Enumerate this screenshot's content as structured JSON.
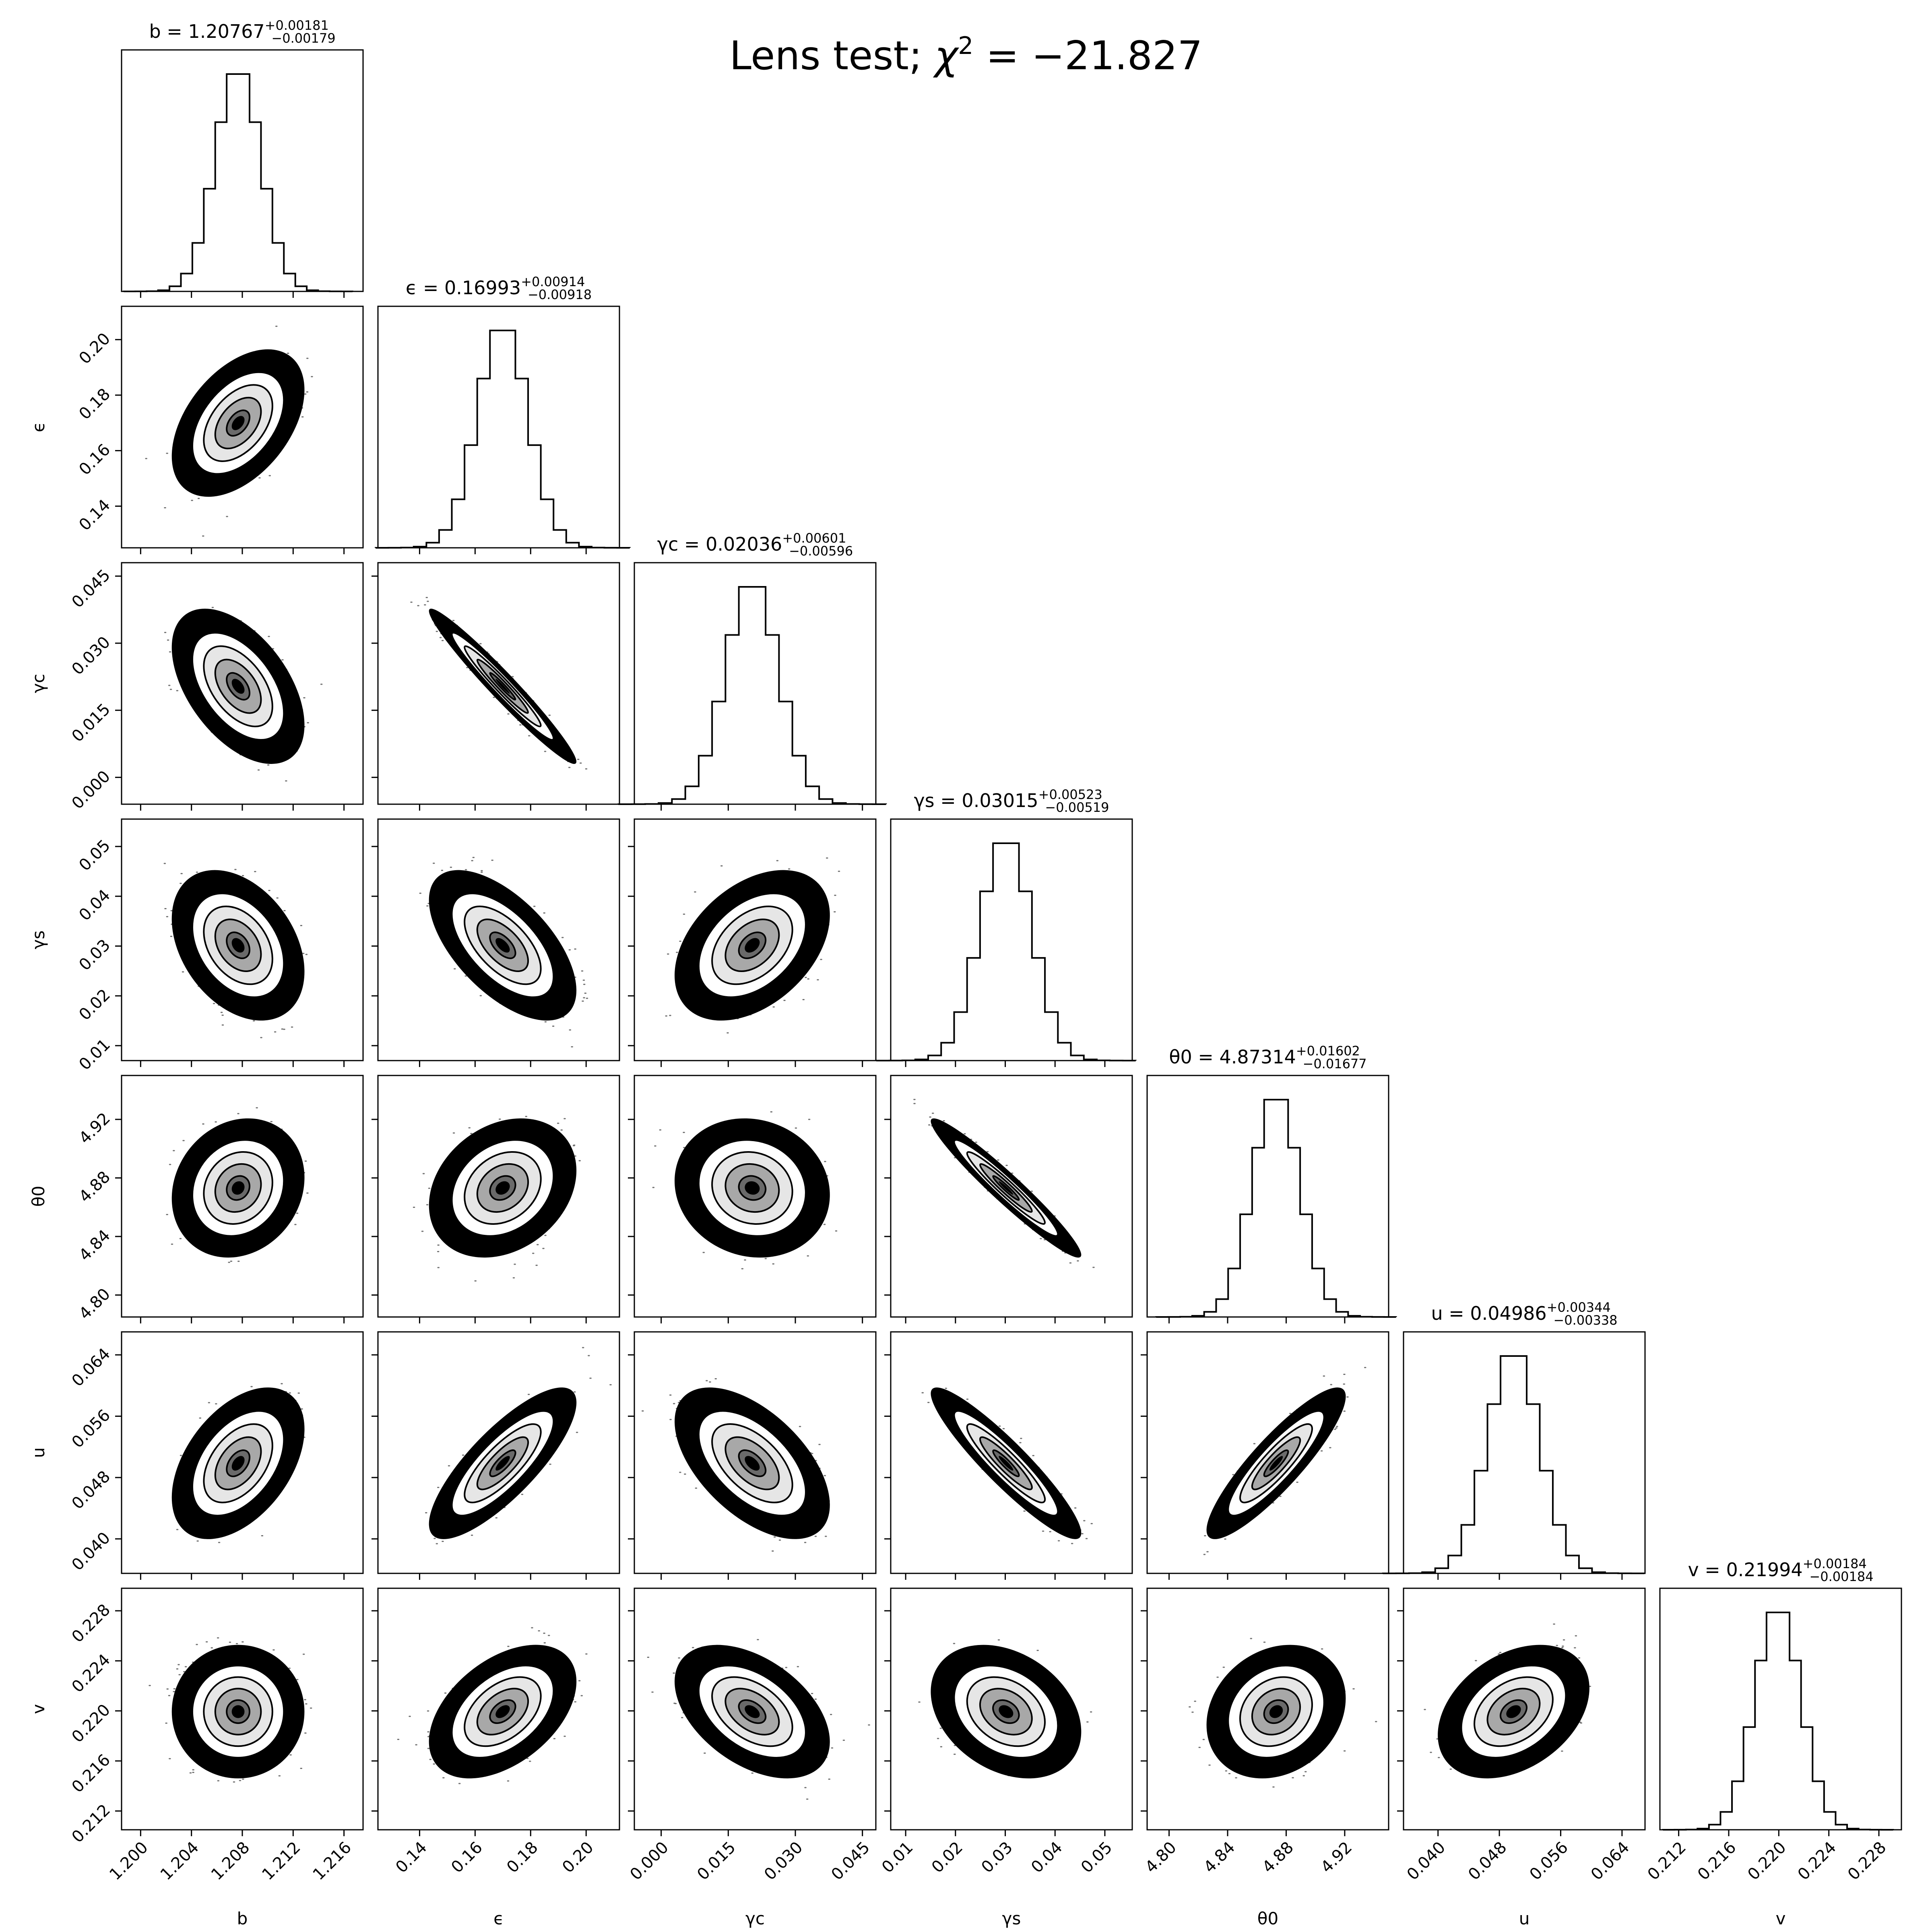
{
  "figure": {
    "title": "Lens test; χ² = −21.827",
    "title_text": "Lens test; ",
    "title_chi": "χ",
    "title_sup": "2",
    "title_rest": " = −21.827"
  },
  "chart_data": {
    "type": "corner",
    "colors": {
      "ink": "#000000",
      "background": "#ffffff"
    },
    "parameters": [
      {
        "label": "b",
        "median": 1.20767,
        "plus": 0.00181,
        "minus": 0.00179,
        "title": "b = 1.20767",
        "title_plus": "+0.00181",
        "title_minus": "−0.00179",
        "range": [
          1.1985,
          1.2175
        ],
        "ticks": [
          1.2,
          1.204,
          1.208,
          1.212,
          1.216
        ],
        "tick_labels": [
          "1.200",
          "1.204",
          "1.208",
          "1.212",
          "1.216"
        ]
      },
      {
        "label": "ϵ",
        "median": 0.16993,
        "plus": 0.00914,
        "minus": 0.00918,
        "title": "ϵ = 0.16993",
        "title_plus": "+0.00914",
        "title_minus": "−0.00918",
        "range": [
          0.125,
          0.212
        ],
        "ticks": [
          0.14,
          0.16,
          0.18,
          0.2
        ],
        "tick_labels": [
          "0.14",
          "0.16",
          "0.18",
          "0.20"
        ]
      },
      {
        "label": "γc",
        "median": 0.02036,
        "plus": 0.00601,
        "minus": 0.00596,
        "title": "γc = 0.02036",
        "title_plus": "+0.00601",
        "title_minus": "−0.00596",
        "range": [
          -0.006,
          0.048
        ],
        "ticks": [
          0.0,
          0.015,
          0.03,
          0.045
        ],
        "tick_labels": [
          "0.000",
          "0.015",
          "0.030",
          "0.045"
        ]
      },
      {
        "label": "γs",
        "median": 0.03015,
        "plus": 0.00523,
        "minus": 0.00519,
        "title": "γs = 0.03015",
        "title_plus": "+0.00523",
        "title_minus": "−0.00519",
        "range": [
          0.007,
          0.0555
        ],
        "ticks": [
          0.01,
          0.02,
          0.03,
          0.04,
          0.05
        ],
        "tick_labels": [
          "0.01",
          "0.02",
          "0.03",
          "0.04",
          "0.05"
        ]
      },
      {
        "label": "θ0",
        "median": 4.87314,
        "plus": 0.01602,
        "minus": 0.01677,
        "title": "θ0 = 4.87314",
        "title_plus": "+0.01602",
        "title_minus": "−0.01677",
        "range": [
          4.785,
          4.95
        ],
        "ticks": [
          4.8,
          4.84,
          4.88,
          4.92
        ],
        "tick_labels": [
          "4.80",
          "4.84",
          "4.88",
          "4.92"
        ]
      },
      {
        "label": "u",
        "median": 0.04986,
        "plus": 0.00344,
        "minus": 0.00338,
        "title": "u = 0.04986",
        "title_plus": "+0.00344",
        "title_minus": "−0.00338",
        "range": [
          0.0355,
          0.067
        ],
        "ticks": [
          0.04,
          0.048,
          0.056,
          0.064
        ],
        "tick_labels": [
          "0.040",
          "0.048",
          "0.056",
          "0.064"
        ]
      },
      {
        "label": "v",
        "median": 0.21994,
        "plus": 0.00184,
        "minus": 0.00184,
        "title": "v = 0.21994",
        "title_plus": "+0.00184",
        "title_minus": "−0.00184",
        "range": [
          0.2105,
          0.2298
        ],
        "ticks": [
          0.212,
          0.216,
          0.22,
          0.224,
          0.228
        ],
        "tick_labels": [
          "0.212",
          "0.216",
          "0.220",
          "0.224",
          "0.228"
        ]
      }
    ],
    "correlations": [
      {
        "row": "ϵ",
        "col": "b",
        "rho": 0.45
      },
      {
        "row": "γc",
        "col": "b",
        "rho": -0.5
      },
      {
        "row": "γc",
        "col": "ϵ",
        "rho": -0.97
      },
      {
        "row": "γs",
        "col": "b",
        "rho": -0.35
      },
      {
        "row": "γs",
        "col": "ϵ",
        "rho": -0.6
      },
      {
        "row": "γs",
        "col": "γc",
        "rho": 0.4
      },
      {
        "row": "θ0",
        "col": "b",
        "rho": 0.15
      },
      {
        "row": "θ0",
        "col": "ϵ",
        "rho": 0.25
      },
      {
        "row": "θ0",
        "col": "γc",
        "rho": -0.1
      },
      {
        "row": "θ0",
        "col": "γs",
        "rho": -0.96
      },
      {
        "row": "u",
        "col": "b",
        "rho": 0.45
      },
      {
        "row": "u",
        "col": "ϵ",
        "rho": 0.8
      },
      {
        "row": "u",
        "col": "γc",
        "rho": -0.55
      },
      {
        "row": "u",
        "col": "γs",
        "rho": -0.92
      },
      {
        "row": "u",
        "col": "θ0",
        "rho": 0.88
      },
      {
        "row": "v",
        "col": "b",
        "rho": 0.0
      },
      {
        "row": "v",
        "col": "ϵ",
        "rho": 0.45
      },
      {
        "row": "v",
        "col": "γc",
        "rho": -0.45
      },
      {
        "row": "v",
        "col": "γs",
        "rho": -0.3
      },
      {
        "row": "v",
        "col": "θ0",
        "rho": 0.2
      },
      {
        "row": "v",
        "col": "u",
        "rho": 0.35
      }
    ],
    "contour_sigma_levels": [
      0.5,
      1.0,
      1.5,
      2.0
    ],
    "histogram_bins": 20
  }
}
